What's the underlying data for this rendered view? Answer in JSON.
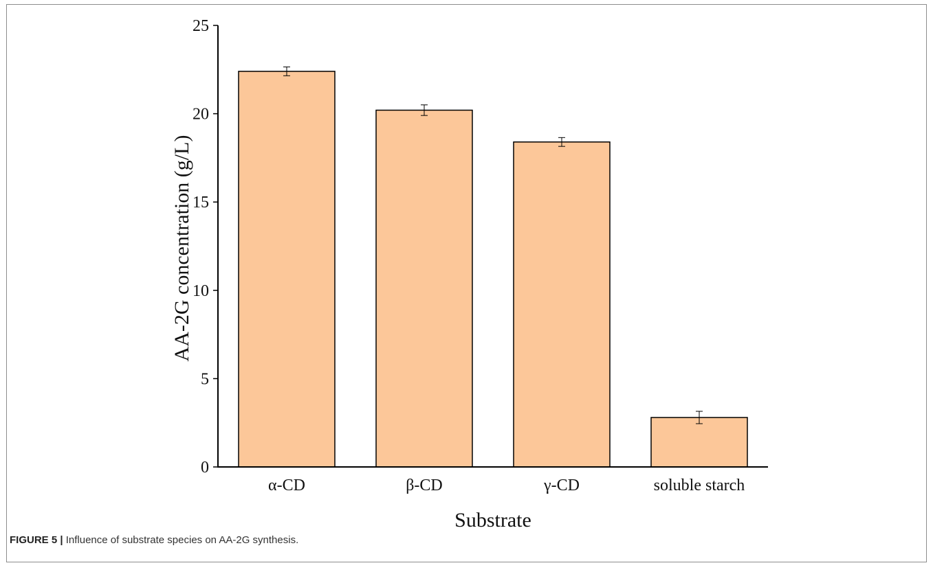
{
  "chart_data": {
    "type": "bar",
    "categories": [
      "α-CD",
      "β-CD",
      "γ-CD",
      "soluble starch"
    ],
    "values": [
      22.4,
      20.2,
      18.4,
      2.8
    ],
    "errors": [
      0.25,
      0.3,
      0.25,
      0.35
    ],
    "xlabel": "Substrate",
    "ylabel": "AA-2G concentration (g/L)",
    "ylim": [
      0,
      25
    ],
    "yticks": [
      0,
      5,
      10,
      15,
      20,
      25
    ],
    "grid": false,
    "bar_color": "#fcc799",
    "bar_edge_color": "#000000"
  },
  "caption": {
    "label": "FIGURE 5 |",
    "text": " Influence of substrate species on AA-2G synthesis."
  }
}
